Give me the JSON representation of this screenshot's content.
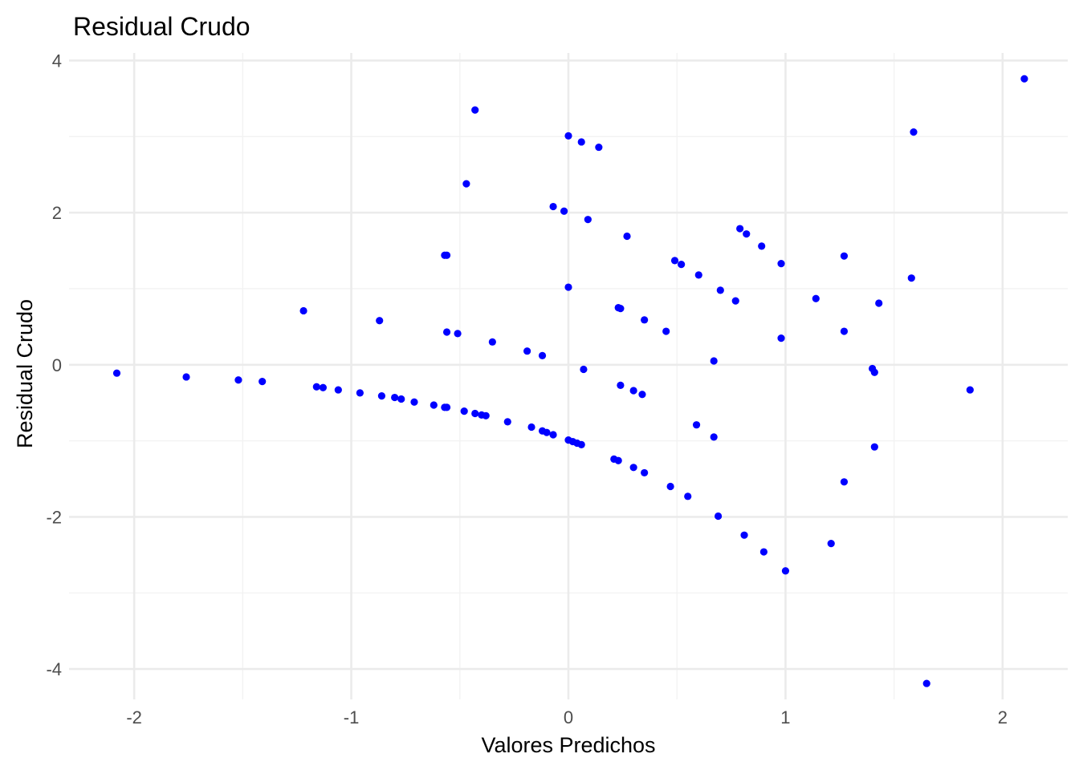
{
  "chart_data": {
    "type": "scatter",
    "title": "Residual Crudo",
    "xlabel": "Valores Predichos",
    "ylabel": "Residual Crudo",
    "xlim": [
      -2.3,
      2.3
    ],
    "ylim": [
      -4.4,
      4.1
    ],
    "x_ticks": [
      -2,
      -1,
      0,
      1,
      2
    ],
    "x_tick_labels": [
      "-2",
      "-1",
      "0",
      "1",
      "2"
    ],
    "y_ticks": [
      -4,
      -2,
      0,
      2,
      4
    ],
    "y_tick_labels": [
      "-4",
      "-2",
      "0",
      "2",
      "4"
    ],
    "x_minor": [
      -1.5,
      -0.5,
      0.5,
      1.5
    ],
    "y_minor": [
      -3,
      -1,
      1,
      3
    ],
    "grid": true,
    "legend": "none",
    "point_color": "#0000ff",
    "series": [
      {
        "points": [
          [
            -2.08,
            -0.11
          ],
          [
            -1.76,
            -0.16
          ],
          [
            -1.52,
            -0.2
          ],
          [
            -1.41,
            -0.22
          ],
          [
            -1.16,
            -0.29
          ],
          [
            -1.13,
            -0.3
          ],
          [
            -1.06,
            -0.33
          ],
          [
            -0.96,
            -0.37
          ],
          [
            -0.86,
            -0.41
          ],
          [
            -0.8,
            -0.43
          ],
          [
            -0.77,
            -0.45
          ],
          [
            -0.71,
            -0.49
          ],
          [
            -0.62,
            -0.53
          ],
          [
            -0.57,
            -0.56
          ],
          [
            -0.56,
            -0.56
          ],
          [
            -0.48,
            -0.61
          ],
          [
            -0.43,
            -0.64
          ],
          [
            -0.4,
            -0.66
          ],
          [
            -0.38,
            -0.67
          ],
          [
            -0.28,
            -0.75
          ],
          [
            -0.17,
            -0.82
          ],
          [
            -0.12,
            -0.87
          ],
          [
            -0.1,
            -0.89
          ],
          [
            -0.07,
            -0.92
          ],
          [
            0.0,
            -0.99
          ],
          [
            0.02,
            -1.01
          ],
          [
            0.04,
            -1.03
          ],
          [
            0.06,
            -1.05
          ],
          [
            0.21,
            -1.24
          ],
          [
            0.23,
            -1.26
          ],
          [
            0.3,
            -1.35
          ],
          [
            0.35,
            -1.42
          ],
          [
            0.47,
            -1.6
          ],
          [
            0.55,
            -1.73
          ],
          [
            0.69,
            -1.99
          ],
          [
            0.81,
            -2.24
          ],
          [
            0.9,
            -2.46
          ],
          [
            1.0,
            -2.71
          ],
          [
            -1.22,
            0.71
          ],
          [
            -0.87,
            0.58
          ],
          [
            -0.56,
            0.43
          ],
          [
            -0.51,
            0.41
          ],
          [
            -0.35,
            0.3
          ],
          [
            -0.19,
            0.18
          ],
          [
            -0.12,
            0.12
          ],
          [
            0.07,
            -0.06
          ],
          [
            0.24,
            -0.27
          ],
          [
            0.3,
            -0.34
          ],
          [
            0.34,
            -0.39
          ],
          [
            0.59,
            -0.79
          ],
          [
            0.67,
            -0.95
          ],
          [
            -0.57,
            1.44
          ],
          [
            -0.56,
            1.44
          ],
          [
            0.0,
            1.02
          ],
          [
            0.23,
            0.75
          ],
          [
            0.24,
            0.74
          ],
          [
            0.35,
            0.59
          ],
          [
            0.45,
            0.44
          ],
          [
            0.67,
            0.05
          ],
          [
            -0.07,
            2.08
          ],
          [
            -0.02,
            2.02
          ],
          [
            0.09,
            1.91
          ],
          [
            0.27,
            1.69
          ],
          [
            0.49,
            1.37
          ],
          [
            0.52,
            1.32
          ],
          [
            0.6,
            1.18
          ],
          [
            0.7,
            0.98
          ],
          [
            0.77,
            0.84
          ],
          [
            0.98,
            0.35
          ],
          [
            1.4,
            -0.05
          ],
          [
            1.41,
            -0.1
          ],
          [
            -0.43,
            3.35
          ],
          [
            -0.47,
            2.38
          ],
          [
            0.0,
            3.01
          ],
          [
            0.06,
            2.93
          ],
          [
            0.14,
            2.86
          ],
          [
            0.79,
            1.79
          ],
          [
            0.82,
            1.72
          ],
          [
            0.89,
            1.56
          ],
          [
            0.98,
            1.33
          ],
          [
            1.14,
            0.87
          ],
          [
            1.27,
            0.44
          ],
          [
            1.41,
            -1.08
          ],
          [
            1.21,
            -2.35
          ],
          [
            1.27,
            -1.54
          ],
          [
            1.27,
            1.43
          ],
          [
            1.43,
            0.81
          ],
          [
            1.58,
            1.14
          ],
          [
            1.59,
            3.06
          ],
          [
            1.65,
            -4.19
          ],
          [
            1.85,
            -0.33
          ],
          [
            2.1,
            3.76
          ]
        ]
      }
    ]
  }
}
